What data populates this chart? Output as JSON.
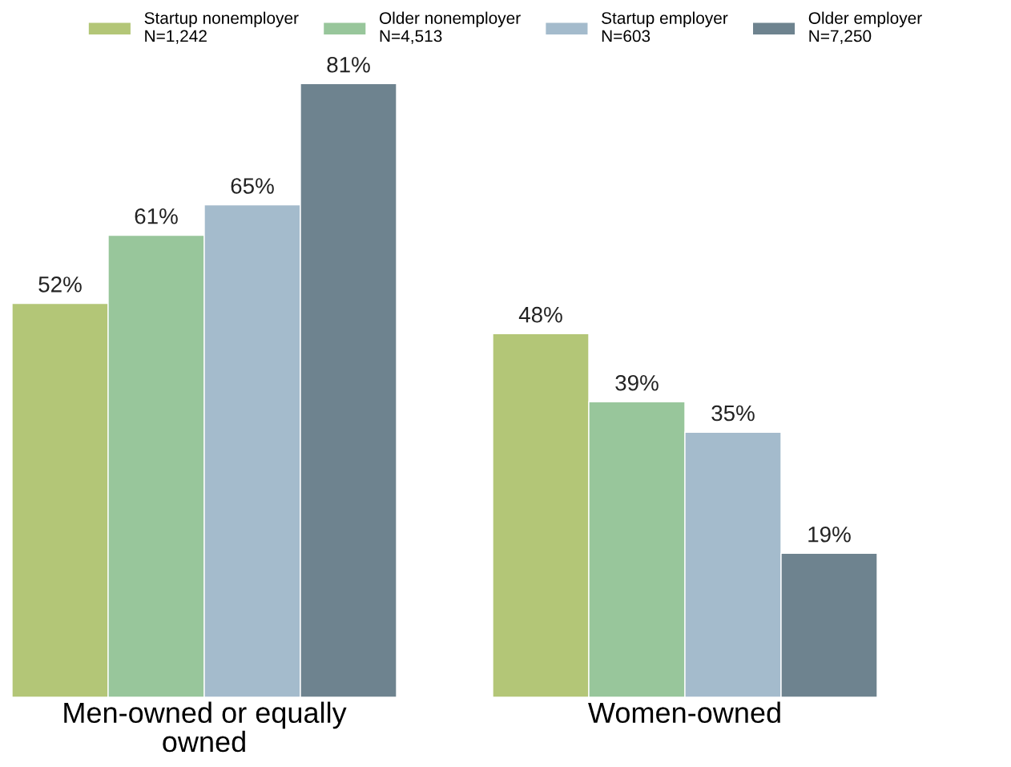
{
  "chart_data": {
    "type": "bar",
    "categories": [
      "Men-owned or equally\nowned",
      "Women-owned"
    ],
    "series": [
      {
        "name": "Startup nonemployer\nN=1,242",
        "color": "#b3c677",
        "values": [
          52,
          48
        ],
        "value_labels": [
          "52%",
          "48%"
        ]
      },
      {
        "name": "Older nonemployer\nN=4,513",
        "color": "#98c69b",
        "values": [
          61,
          39
        ],
        "value_labels": [
          "61%",
          "39%"
        ]
      },
      {
        "name": "Startup employer\nN=603",
        "color": "#a4bbcc",
        "values": [
          65,
          35
        ],
        "value_labels": [
          "65%",
          "35%"
        ]
      },
      {
        "name": "Older employer\nN=7,250",
        "color": "#6e838f",
        "values": [
          81,
          19
        ],
        "value_labels": [
          "81%",
          "19%"
        ]
      }
    ],
    "legend": "top",
    "grid": false,
    "tick_labels": "x"
  }
}
